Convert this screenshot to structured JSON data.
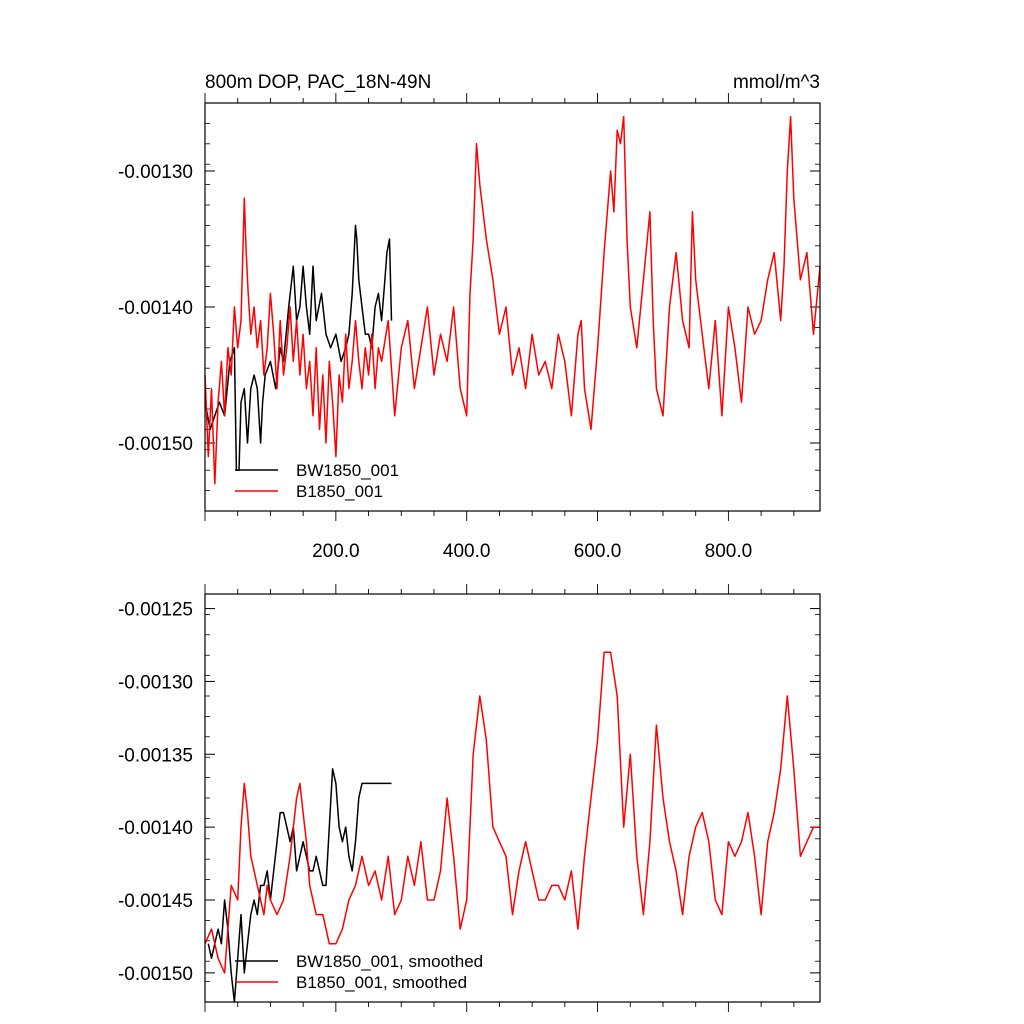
{
  "chart_data": [
    {
      "type": "line",
      "title": "800m DOP, PAC_18N-49N",
      "units": "mmol/m^3",
      "xlim": [
        0,
        940
      ],
      "ylim": [
        -0.00155,
        -0.00125
      ],
      "x_ticks": [
        200,
        400,
        600,
        800
      ],
      "x_tick_labels": [
        "200.0",
        "400.0",
        "600.0",
        "800.0"
      ],
      "y_ticks": [
        -0.0013,
        -0.0014,
        -0.0015
      ],
      "y_tick_labels": [
        "-0.00130",
        "-0.00140",
        "-0.00150"
      ],
      "series": [
        {
          "name": "BW1850_001",
          "color": "#000000",
          "x": [
            0,
            8,
            15,
            22,
            30,
            38,
            45,
            48,
            52,
            55,
            60,
            65,
            70,
            75,
            80,
            85,
            88,
            92,
            100,
            108,
            115,
            120,
            128,
            135,
            140,
            145,
            150,
            155,
            160,
            165,
            170,
            178,
            185,
            192,
            200,
            208,
            215,
            220,
            225,
            230,
            232,
            235,
            240,
            245,
            250,
            255,
            260,
            265,
            270,
            275,
            278,
            282,
            285
          ],
          "y": [
            -0.00147,
            -0.00149,
            -0.00148,
            -0.00147,
            -0.00148,
            -0.00144,
            -0.00143,
            -0.00152,
            -0.00152,
            -0.00147,
            -0.00146,
            -0.0015,
            -0.00146,
            -0.00145,
            -0.00146,
            -0.0015,
            -0.00147,
            -0.00145,
            -0.00144,
            -0.00146,
            -0.00143,
            -0.00144,
            -0.0014,
            -0.00137,
            -0.00141,
            -0.0014,
            -0.00137,
            -0.0014,
            -0.00142,
            -0.00137,
            -0.00141,
            -0.00139,
            -0.00142,
            -0.00143,
            -0.00142,
            -0.00144,
            -0.00143,
            -0.00142,
            -0.00139,
            -0.00134,
            -0.00135,
            -0.00138,
            -0.0014,
            -0.00142,
            -0.00142,
            -0.00143,
            -0.0014,
            -0.00139,
            -0.00141,
            -0.00138,
            -0.00136,
            -0.00135,
            -0.00141
          ]
        },
        {
          "name": "B1850_001",
          "color": "#ff0000",
          "x": [
            0,
            5,
            10,
            15,
            20,
            25,
            30,
            35,
            40,
            45,
            50,
            55,
            60,
            63,
            66,
            70,
            75,
            80,
            85,
            90,
            95,
            100,
            105,
            110,
            115,
            120,
            125,
            130,
            135,
            140,
            145,
            150,
            155,
            160,
            165,
            170,
            175,
            180,
            185,
            190,
            195,
            200,
            205,
            210,
            215,
            220,
            225,
            230,
            235,
            240,
            245,
            250,
            255,
            260,
            265,
            270,
            280,
            290,
            300,
            310,
            320,
            330,
            340,
            350,
            360,
            370,
            380,
            390,
            400,
            405,
            410,
            415,
            420,
            430,
            440,
            450,
            460,
            470,
            480,
            490,
            500,
            510,
            520,
            530,
            540,
            550,
            560,
            570,
            575,
            580,
            590,
            600,
            610,
            620,
            625,
            630,
            635,
            640,
            645,
            650,
            660,
            670,
            680,
            685,
            690,
            700,
            710,
            720,
            730,
            740,
            745,
            750,
            760,
            770,
            780,
            790,
            800,
            810,
            820,
            830,
            840,
            850,
            860,
            870,
            880,
            885,
            890,
            895,
            900,
            910,
            920,
            930,
            940
          ],
          "y": [
            -0.00145,
            -0.00151,
            -0.00146,
            -0.00153,
            -0.00147,
            -0.00144,
            -0.00148,
            -0.00143,
            -0.00145,
            -0.0014,
            -0.00143,
            -0.00141,
            -0.00132,
            -0.00136,
            -0.00139,
            -0.00142,
            -0.0014,
            -0.00143,
            -0.00141,
            -0.00145,
            -0.00143,
            -0.00139,
            -0.00142,
            -0.00146,
            -0.00141,
            -0.00145,
            -0.00143,
            -0.0014,
            -0.00144,
            -0.00141,
            -0.00145,
            -0.00142,
            -0.00146,
            -0.00144,
            -0.00148,
            -0.00143,
            -0.00149,
            -0.00145,
            -0.0015,
            -0.00144,
            -0.00147,
            -0.00151,
            -0.00145,
            -0.00147,
            -0.00142,
            -0.00146,
            -0.00144,
            -0.00141,
            -0.00144,
            -0.00146,
            -0.00143,
            -0.00145,
            -0.00142,
            -0.00146,
            -0.00143,
            -0.00144,
            -0.00141,
            -0.00148,
            -0.00143,
            -0.00141,
            -0.00146,
            -0.00143,
            -0.0014,
            -0.00145,
            -0.00142,
            -0.00144,
            -0.0014,
            -0.00146,
            -0.00148,
            -0.00139,
            -0.00135,
            -0.00128,
            -0.00131,
            -0.00135,
            -0.00138,
            -0.00142,
            -0.0014,
            -0.00145,
            -0.00143,
            -0.00146,
            -0.00142,
            -0.00145,
            -0.00144,
            -0.00146,
            -0.00142,
            -0.00144,
            -0.00148,
            -0.00142,
            -0.00141,
            -0.00146,
            -0.00149,
            -0.00143,
            -0.00136,
            -0.0013,
            -0.00133,
            -0.00127,
            -0.00128,
            -0.00126,
            -0.00135,
            -0.0014,
            -0.00143,
            -0.00138,
            -0.00133,
            -0.00141,
            -0.00146,
            -0.00148,
            -0.0014,
            -0.00136,
            -0.00141,
            -0.00143,
            -0.00133,
            -0.00138,
            -0.00142,
            -0.00146,
            -0.00141,
            -0.00148,
            -0.0014,
            -0.00143,
            -0.00147,
            -0.0014,
            -0.00142,
            -0.00141,
            -0.00138,
            -0.00136,
            -0.00141,
            -0.00137,
            -0.0013,
            -0.00126,
            -0.00132,
            -0.00138,
            -0.00136,
            -0.00142,
            -0.00137
          ]
        }
      ],
      "legend": {
        "position": "bottom-left",
        "entries": [
          "BW1850_001",
          "B1850_001"
        ]
      }
    },
    {
      "type": "line",
      "title": "",
      "xlim": [
        0,
        940
      ],
      "ylim": [
        -0.00152,
        -0.00124
      ],
      "y_ticks": [
        -0.00125,
        -0.0013,
        -0.00135,
        -0.0014,
        -0.00145,
        -0.0015
      ],
      "y_tick_labels": [
        "-0.00125",
        "-0.00130",
        "-0.00135",
        "-0.00140",
        "-0.00145",
        "-0.00150"
      ],
      "x_tick_labels": [],
      "series": [
        {
          "name": "BW1850_001, smoothed",
          "color": "#000000",
          "x": [
            5,
            10,
            15,
            20,
            25,
            30,
            35,
            40,
            45,
            50,
            55,
            60,
            65,
            70,
            75,
            80,
            85,
            90,
            95,
            100,
            105,
            110,
            115,
            120,
            125,
            130,
            135,
            140,
            145,
            150,
            155,
            160,
            165,
            170,
            175,
            180,
            185,
            190,
            195,
            200,
            205,
            210,
            215,
            220,
            225,
            230,
            235,
            240,
            245,
            250,
            255,
            260,
            265,
            270,
            275,
            280,
            285
          ],
          "y": [
            -0.00148,
            -0.00149,
            -0.00148,
            -0.00147,
            -0.00148,
            -0.00145,
            -0.00147,
            -0.0015,
            -0.00152,
            -0.00149,
            -0.00146,
            -0.0015,
            -0.00148,
            -0.00146,
            -0.00145,
            -0.00146,
            -0.00144,
            -0.00144,
            -0.00143,
            -0.00145,
            -0.00143,
            -0.00141,
            -0.00139,
            -0.00139,
            -0.0014,
            -0.00141,
            -0.0014,
            -0.00143,
            -0.00142,
            -0.00141,
            -0.00142,
            -0.00143,
            -0.00143,
            -0.00142,
            -0.00143,
            -0.00144,
            -0.00144,
            -0.0014,
            -0.00136,
            -0.00137,
            -0.0014,
            -0.00141,
            -0.0014,
            -0.00142,
            -0.00143,
            -0.00141,
            -0.00138,
            -0.00137,
            -0.00137,
            -0.00137,
            -0.00137,
            -0.00137,
            -0.00137,
            -0.00137,
            -0.00137,
            -0.00137,
            -0.00137
          ]
        },
        {
          "name": "B1850_001, smoothed",
          "color": "#ff0000",
          "x": [
            0,
            10,
            20,
            30,
            40,
            50,
            55,
            60,
            65,
            70,
            75,
            80,
            85,
            90,
            95,
            100,
            110,
            120,
            130,
            140,
            145,
            150,
            155,
            160,
            170,
            180,
            190,
            200,
            210,
            220,
            230,
            240,
            250,
            260,
            270,
            280,
            290,
            300,
            310,
            320,
            330,
            340,
            350,
            360,
            370,
            380,
            390,
            400,
            410,
            420,
            430,
            440,
            450,
            460,
            470,
            480,
            490,
            500,
            510,
            520,
            530,
            540,
            550,
            560,
            570,
            580,
            590,
            600,
            610,
            620,
            630,
            640,
            650,
            660,
            670,
            680,
            690,
            700,
            710,
            720,
            730,
            740,
            750,
            760,
            770,
            780,
            790,
            800,
            810,
            820,
            830,
            840,
            850,
            860,
            870,
            880,
            890,
            900,
            910,
            920,
            930,
            940
          ],
          "y": [
            -0.00148,
            -0.00147,
            -0.00149,
            -0.0015,
            -0.00144,
            -0.00145,
            -0.0014,
            -0.00137,
            -0.00139,
            -0.00142,
            -0.00143,
            -0.00144,
            -0.00145,
            -0.00146,
            -0.00144,
            -0.00145,
            -0.00146,
            -0.00145,
            -0.00142,
            -0.00138,
            -0.00137,
            -0.00139,
            -0.00141,
            -0.00144,
            -0.00146,
            -0.00146,
            -0.00148,
            -0.00148,
            -0.00147,
            -0.00145,
            -0.00144,
            -0.00142,
            -0.00144,
            -0.00143,
            -0.00145,
            -0.00142,
            -0.00146,
            -0.00145,
            -0.00142,
            -0.00144,
            -0.00141,
            -0.00145,
            -0.00145,
            -0.00143,
            -0.00138,
            -0.00142,
            -0.00147,
            -0.00145,
            -0.00135,
            -0.00131,
            -0.00134,
            -0.0014,
            -0.00141,
            -0.00142,
            -0.00146,
            -0.00143,
            -0.00141,
            -0.00143,
            -0.00145,
            -0.00145,
            -0.00144,
            -0.00144,
            -0.00145,
            -0.00143,
            -0.00147,
            -0.00142,
            -0.00138,
            -0.00134,
            -0.00128,
            -0.00128,
            -0.00131,
            -0.0014,
            -0.00135,
            -0.00142,
            -0.00146,
            -0.00141,
            -0.00133,
            -0.00138,
            -0.00141,
            -0.00143,
            -0.00146,
            -0.00142,
            -0.0014,
            -0.00139,
            -0.00141,
            -0.00145,
            -0.00146,
            -0.00141,
            -0.00142,
            -0.00141,
            -0.00139,
            -0.00142,
            -0.00146,
            -0.00141,
            -0.00139,
            -0.00136,
            -0.00131,
            -0.00136,
            -0.00142,
            -0.00141,
            -0.0014,
            -0.0014
          ]
        }
      ],
      "legend": {
        "position": "bottom-left",
        "entries": [
          "BW1850_001, smoothed",
          "B1850_001, smoothed"
        ]
      }
    }
  ]
}
